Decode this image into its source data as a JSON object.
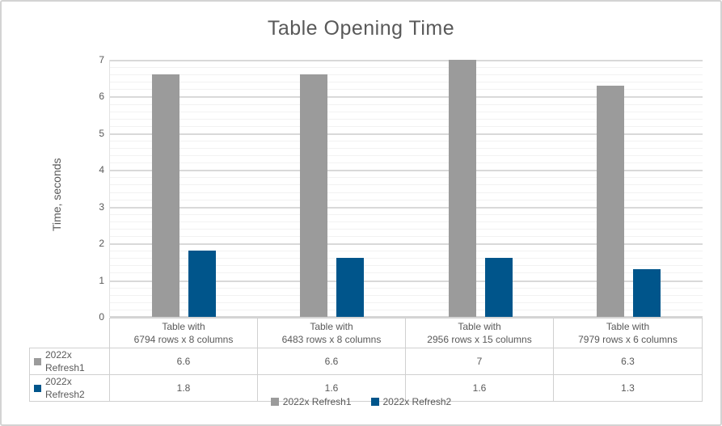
{
  "window": {
    "background": "#ffffff",
    "frame_border_color": "#d3d3d3"
  },
  "chart_data": {
    "type": "bar",
    "title": "Table Opening Time",
    "xlabel": "",
    "ylabel": "Time, seconds",
    "ylim": [
      0,
      7
    ],
    "ytick_step": 1,
    "minor_gridline_step": 0.2,
    "yticks": [
      0,
      1,
      2,
      3,
      4,
      5,
      6,
      7
    ],
    "grid": true,
    "legend_position": "bottom",
    "categories": [
      {
        "line1": "Table with",
        "line2": "6794 rows x 8 columns"
      },
      {
        "line1": "Table with",
        "line2": "6483 rows x 8 columns"
      },
      {
        "line1": "Table with",
        "line2": "2956 rows x 15 columns"
      },
      {
        "line1": "Table with",
        "line2": "7979 rows x 6 columns"
      }
    ],
    "series": [
      {
        "name": "2022x Refresh1",
        "color": "#9b9b9b",
        "values": [
          6.6,
          6.6,
          7,
          6.3
        ]
      },
      {
        "name": "2022x Refresh2",
        "color": "#00558b",
        "values": [
          1.8,
          1.6,
          1.6,
          1.3
        ]
      }
    ]
  },
  "data_table": {
    "rows": [
      {
        "label": "2022x Refresh1",
        "swatch_color": "#9b9b9b",
        "values": [
          "6.6",
          "6.6",
          "7",
          "6.3"
        ]
      },
      {
        "label": "2022x Refresh2",
        "swatch_color": "#00558b",
        "values": [
          "1.8",
          "1.6",
          "1.6",
          "1.3"
        ]
      }
    ]
  },
  "legend": {
    "items": [
      {
        "label": "2022x Refresh1",
        "color": "#9b9b9b"
      },
      {
        "label": "2022x Refresh2",
        "color": "#00558b"
      }
    ]
  },
  "colors": {
    "series1": "#9b9b9b",
    "series2": "#00558b",
    "major_gridline": "#d9d9d9",
    "minor_gridline": "#f2f2f2",
    "text": "#595959",
    "table_border": "#d0d0d0"
  }
}
